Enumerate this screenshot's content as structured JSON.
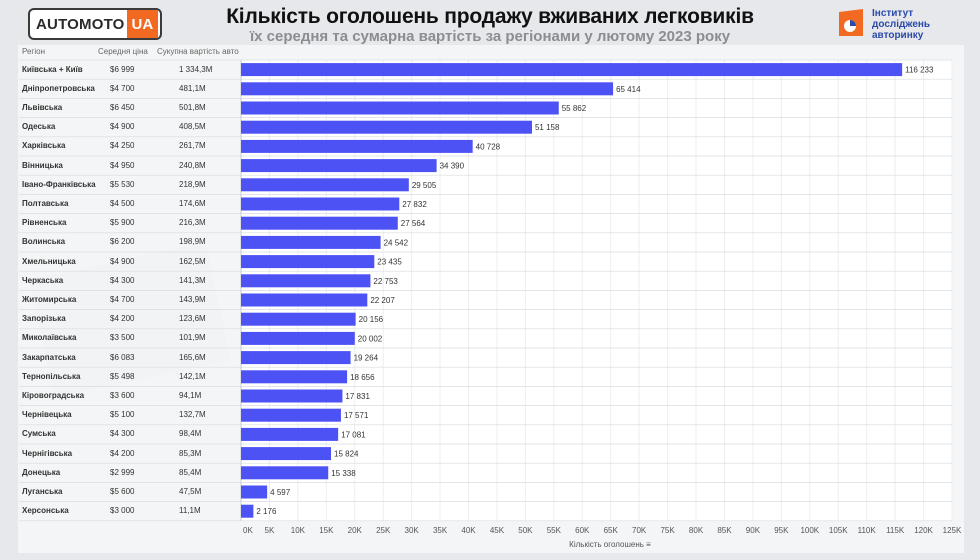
{
  "header": {
    "logo_brand": "AUTOMOTO",
    "logo_tag": "UA",
    "title": "Кількість оголошень продажу вживаних легковиків",
    "subtitle": "їх середня та сумарна вартість за регіонами у лютому 2023 року",
    "institute_line1": "Інститут",
    "institute_line2": "досліджень",
    "institute_line3": "авторинку"
  },
  "table": {
    "col_region": "Регіон",
    "col_avg_price": "Середня ціна",
    "col_total_value": "Сукупна вартість авто"
  },
  "colors": {
    "bar": "#4d52f5",
    "accent_orange": "#f26a21",
    "institute_blue": "#2b4aa8"
  },
  "chart_data": {
    "type": "bar",
    "orientation": "horizontal",
    "title": "Кількість оголошень продажу вживаних легковиків",
    "subtitle": "їх середня та сумарна вартість за регіонами у лютому 2023 року",
    "xlabel": "Кількість оголошень",
    "xlim": [
      0,
      125000
    ],
    "x_ticks": [
      "0K",
      "5K",
      "10K",
      "15K",
      "20K",
      "25K",
      "30K",
      "35K",
      "40K",
      "45K",
      "50K",
      "55K",
      "60K",
      "65K",
      "70K",
      "75K",
      "80K",
      "85K",
      "90K",
      "95K",
      "100K",
      "105K",
      "110K",
      "115K",
      "120K",
      "125K"
    ],
    "grid": true,
    "rows": [
      {
        "region": "Київська + Київ",
        "avg_price": "$6 999",
        "total_value": "1 334,3M",
        "value": 116233,
        "label": "116 233"
      },
      {
        "region": "Дніпропетровська",
        "avg_price": "$4 700",
        "total_value": "481,1M",
        "value": 65414,
        "label": "65 414"
      },
      {
        "region": "Львівська",
        "avg_price": "$6 450",
        "total_value": "501,8M",
        "value": 55862,
        "label": "55 862"
      },
      {
        "region": "Одеська",
        "avg_price": "$4 900",
        "total_value": "408,5M",
        "value": 51158,
        "label": "51 158"
      },
      {
        "region": "Харківська",
        "avg_price": "$4 250",
        "total_value": "261,7M",
        "value": 40728,
        "label": "40 728"
      },
      {
        "region": "Вінницька",
        "avg_price": "$4 950",
        "total_value": "240,8M",
        "value": 34390,
        "label": "34 390"
      },
      {
        "region": "Івано-Франківська",
        "avg_price": "$5 530",
        "total_value": "218,9M",
        "value": 29505,
        "label": "29 505"
      },
      {
        "region": "Полтавська",
        "avg_price": "$4 500",
        "total_value": "174,6M",
        "value": 27832,
        "label": "27 832"
      },
      {
        "region": "Рівненська",
        "avg_price": "$5 900",
        "total_value": "216,3M",
        "value": 27564,
        "label": "27 564"
      },
      {
        "region": "Волинська",
        "avg_price": "$6 200",
        "total_value": "198,9M",
        "value": 24542,
        "label": "24 542"
      },
      {
        "region": "Хмельницька",
        "avg_price": "$4 900",
        "total_value": "162,5M",
        "value": 23435,
        "label": "23 435"
      },
      {
        "region": "Черкаська",
        "avg_price": "$4 300",
        "total_value": "141,3M",
        "value": 22753,
        "label": "22 753"
      },
      {
        "region": "Житомирська",
        "avg_price": "$4 700",
        "total_value": "143,9M",
        "value": 22207,
        "label": "22 207"
      },
      {
        "region": "Запорізька",
        "avg_price": "$4 200",
        "total_value": "123,6M",
        "value": 20156,
        "label": "20 156"
      },
      {
        "region": "Миколаївська",
        "avg_price": "$3 500",
        "total_value": "101,9M",
        "value": 20002,
        "label": "20 002"
      },
      {
        "region": "Закарпатська",
        "avg_price": "$6 083",
        "total_value": "165,6M",
        "value": 19264,
        "label": "19 264"
      },
      {
        "region": "Тернопільська",
        "avg_price": "$5 498",
        "total_value": "142,1M",
        "value": 18656,
        "label": "18 656"
      },
      {
        "region": "Кіровоградська",
        "avg_price": "$3 600",
        "total_value": "94,1M",
        "value": 17831,
        "label": "17 831"
      },
      {
        "region": "Чернівецька",
        "avg_price": "$5 100",
        "total_value": "132,7M",
        "value": 17571,
        "label": "17 571"
      },
      {
        "region": "Сумська",
        "avg_price": "$4 300",
        "total_value": "98,4M",
        "value": 17081,
        "label": "17 081"
      },
      {
        "region": "Чернігівська",
        "avg_price": "$4 200",
        "total_value": "85,3M",
        "value": 15824,
        "label": "15 824"
      },
      {
        "region": "Донецька",
        "avg_price": "$2 999",
        "total_value": "85,4M",
        "value": 15338,
        "label": "15 338"
      },
      {
        "region": "Луганська",
        "avg_price": "$5 600",
        "total_value": "47,5M",
        "value": 4597,
        "label": "4 597"
      },
      {
        "region": "Херсонська",
        "avg_price": "$3 000",
        "total_value": "11,1M",
        "value": 2176,
        "label": "2 176"
      }
    ]
  }
}
